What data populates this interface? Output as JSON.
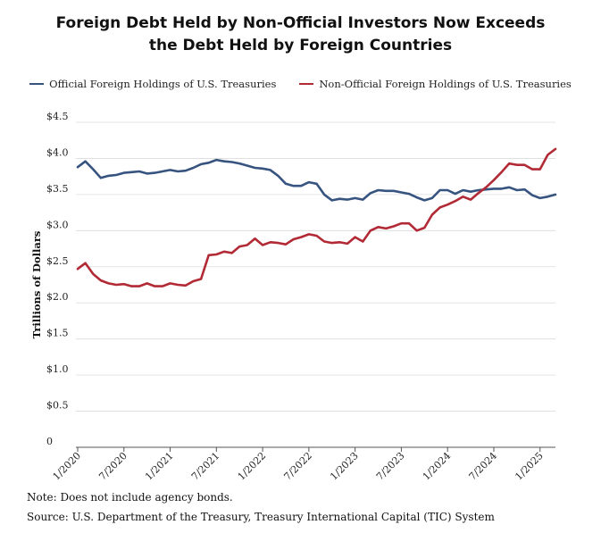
{
  "chart_data": {
    "type": "line",
    "title_line1": "Foreign Debt Held by Non-Official Investors Now Exceeds",
    "title_line2": "the Debt Held by Foreign Countries",
    "ylabel": "Trillions of Dollars",
    "xlabel": "",
    "ylim": [
      0,
      4.5
    ],
    "y_ticks": [
      {
        "value": 0,
        "label": "0"
      },
      {
        "value": 0.5,
        "label": "$0.5"
      },
      {
        "value": 1.0,
        "label": "$1.0"
      },
      {
        "value": 1.5,
        "label": "$1.5"
      },
      {
        "value": 2.0,
        "label": "$2.0"
      },
      {
        "value": 2.5,
        "label": "$2.5"
      },
      {
        "value": 3.0,
        "label": "$3.0"
      },
      {
        "value": 3.5,
        "label": "$3.5"
      },
      {
        "value": 4.0,
        "label": "$4.0"
      },
      {
        "value": 4.5,
        "label": "$4.5"
      }
    ],
    "x_ticks": [
      {
        "index": 0,
        "label": "1/2020"
      },
      {
        "index": 6,
        "label": "7/2020"
      },
      {
        "index": 12,
        "label": "1/2021"
      },
      {
        "index": 18,
        "label": "7/2021"
      },
      {
        "index": 24,
        "label": "1/2022"
      },
      {
        "index": 30,
        "label": "7/2022"
      },
      {
        "index": 36,
        "label": "1/2023"
      },
      {
        "index": 42,
        "label": "7/2023"
      },
      {
        "index": 48,
        "label": "1/2024"
      },
      {
        "index": 54,
        "label": "7/2024"
      },
      {
        "index": 60,
        "label": "1/2025"
      }
    ],
    "x_count": 63,
    "series": [
      {
        "name": "Official Foreign Holdings of U.S. Treasuries",
        "color": "#36547f",
        "values": [
          3.88,
          3.96,
          3.85,
          3.73,
          3.76,
          3.77,
          3.8,
          3.81,
          3.82,
          3.79,
          3.8,
          3.82,
          3.84,
          3.82,
          3.83,
          3.87,
          3.92,
          3.94,
          3.98,
          3.96,
          3.95,
          3.93,
          3.9,
          3.87,
          3.86,
          3.84,
          3.76,
          3.65,
          3.62,
          3.62,
          3.67,
          3.65,
          3.5,
          3.42,
          3.44,
          3.43,
          3.45,
          3.43,
          3.52,
          3.56,
          3.55,
          3.55,
          3.53,
          3.51,
          3.46,
          3.42,
          3.45,
          3.56,
          3.56,
          3.51,
          3.56,
          3.54,
          3.56,
          3.57,
          3.58,
          3.58,
          3.6,
          3.56,
          3.57,
          3.49,
          3.45,
          3.47,
          3.5
        ]
      },
      {
        "name": "Non-Official Foreign Holdings of U.S. Treasuries",
        "color": "#b12a35",
        "values": [
          2.47,
          2.55,
          2.4,
          2.31,
          2.27,
          2.25,
          2.26,
          2.23,
          2.23,
          2.27,
          2.23,
          2.23,
          2.27,
          2.25,
          2.24,
          2.3,
          2.33,
          2.66,
          2.67,
          2.71,
          2.69,
          2.78,
          2.8,
          2.89,
          2.8,
          2.84,
          2.83,
          2.81,
          2.88,
          2.91,
          2.95,
          2.93,
          2.85,
          2.83,
          2.84,
          2.82,
          2.91,
          2.85,
          3.0,
          3.05,
          3.03,
          3.06,
          3.1,
          3.1,
          3.0,
          3.04,
          3.22,
          3.32,
          3.36,
          3.41,
          3.47,
          3.43,
          3.52,
          3.6,
          3.7,
          3.81,
          3.93,
          3.91,
          3.91,
          3.85,
          3.85,
          4.05,
          4.13
        ]
      }
    ]
  },
  "notes": {
    "note": "Note: Does not include agency bonds.",
    "source": "Source: U.S. Department of the Treasury, Treasury International Capital (TIC) System"
  }
}
